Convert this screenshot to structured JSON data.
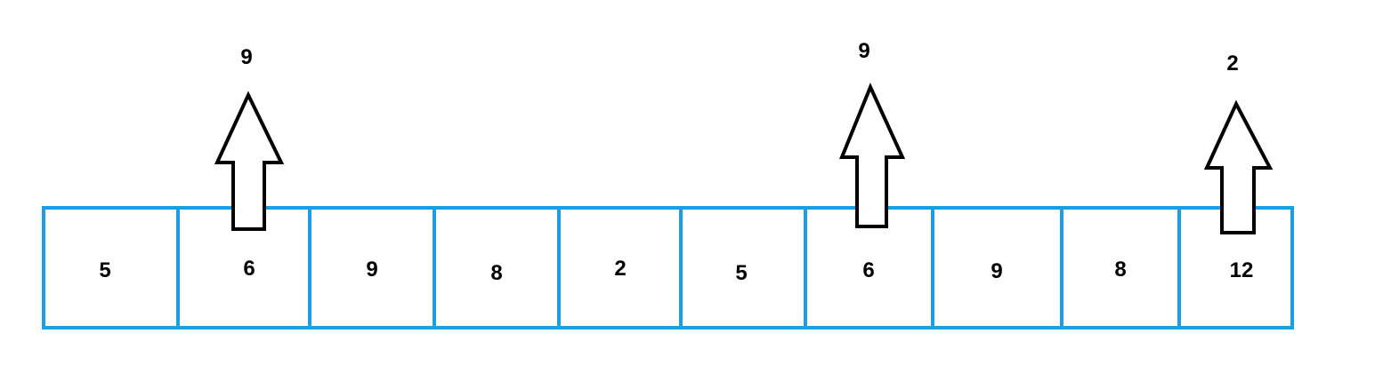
{
  "colors": {
    "cell_border": "#1a9fe0",
    "arrow_stroke": "#000000",
    "text": "#000000",
    "background": "#ffffff"
  },
  "array": {
    "cells": [
      "5",
      "6",
      "9",
      "8",
      "2",
      "5",
      "6",
      "9",
      "8",
      "12"
    ]
  },
  "arrows": [
    {
      "label": "9",
      "cell_index": 1
    },
    {
      "label": "9",
      "cell_index": 6
    },
    {
      "label": "2",
      "cell_index": 9
    }
  ]
}
